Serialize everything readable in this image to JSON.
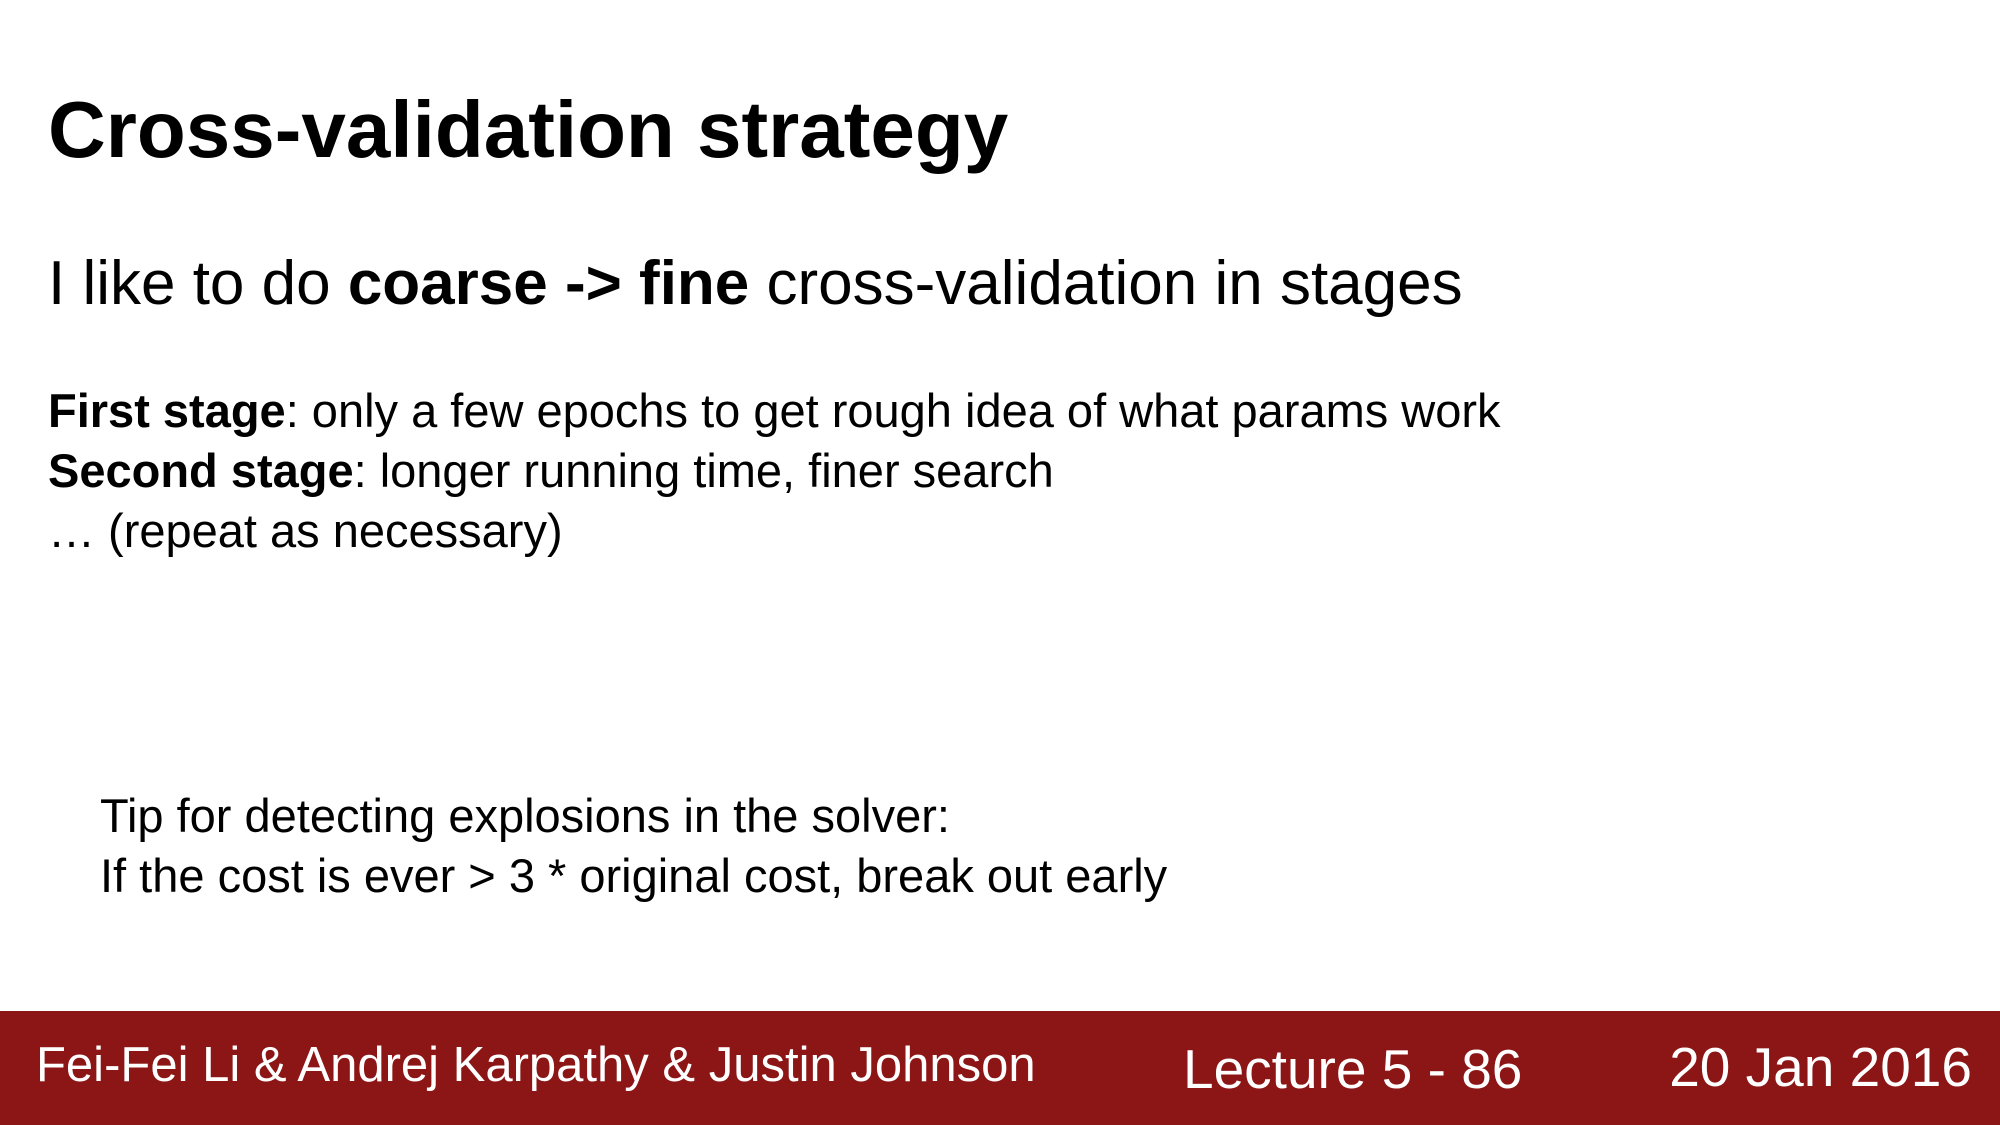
{
  "slide": {
    "title": "Cross-validation strategy",
    "subtitle": {
      "prefix": "I like to do ",
      "emphasis": "coarse -> fine",
      "suffix": " cross-validation in stages"
    },
    "stages": [
      {
        "label": "First stage",
        "text": ": only a few epochs to get rough idea of what params work"
      },
      {
        "label": "Second stage",
        "text": ": longer running time, finer search"
      }
    ],
    "repeat_note": "… (repeat as necessary)",
    "tip": {
      "line1": "Tip for detecting explosions in the solver:",
      "line2": "If the cost is ever > 3 * original cost, break out early"
    }
  },
  "footer": {
    "authors": "Fei-Fei Li & Andrej Karpathy & Justin Johnson",
    "lecture": "Lecture 5 - 86",
    "date": "20 Jan 2016",
    "background_color": "#8c1515"
  }
}
